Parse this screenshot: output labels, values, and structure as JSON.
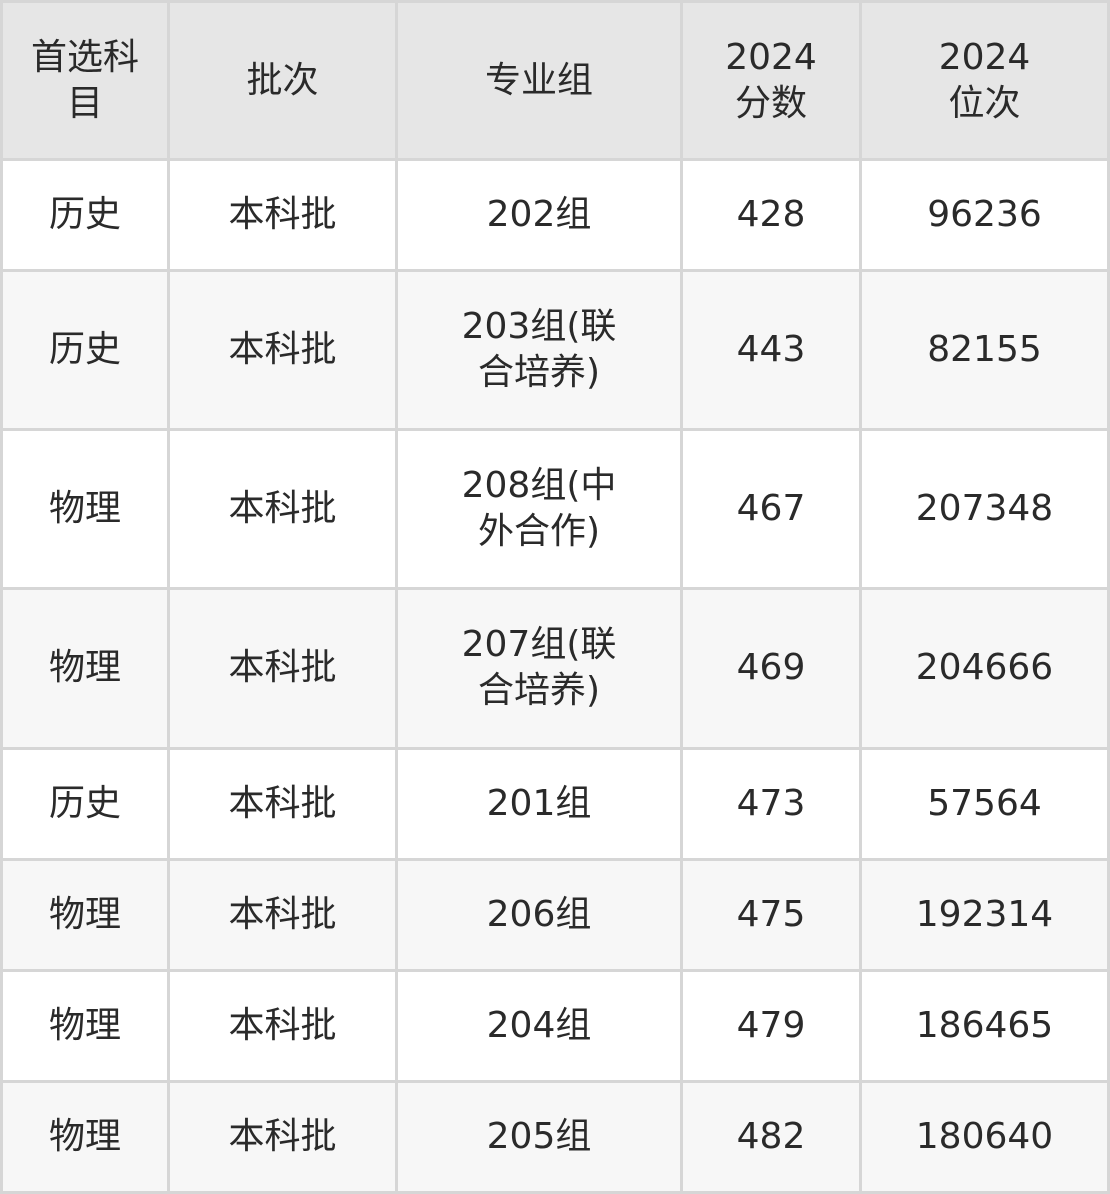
{
  "columns": [
    "首选科目",
    "批次",
    "专业组",
    "2024分数",
    "2024位次"
  ],
  "rows": [
    {
      "subject": "历史",
      "batch": "本科批",
      "group": "202组",
      "score": "428",
      "rank": "96236"
    },
    {
      "subject": "历史",
      "batch": "本科批",
      "group": "203组(联合培养)",
      "score": "443",
      "rank": "82155"
    },
    {
      "subject": "物理",
      "batch": "本科批",
      "group": "208组(中外合作)",
      "score": "467",
      "rank": "207348"
    },
    {
      "subject": "物理",
      "batch": "本科批",
      "group": "207组(联合培养)",
      "score": "469",
      "rank": "204666"
    },
    {
      "subject": "历史",
      "batch": "本科批",
      "group": "201组",
      "score": "473",
      "rank": "57564"
    },
    {
      "subject": "物理",
      "batch": "本科批",
      "group": "206组",
      "score": "475",
      "rank": "192314"
    },
    {
      "subject": "物理",
      "batch": "本科批",
      "group": "204组",
      "score": "479",
      "rank": "186465"
    },
    {
      "subject": "物理",
      "batch": "本科批",
      "group": "205组",
      "score": "482",
      "rank": "180640"
    }
  ]
}
